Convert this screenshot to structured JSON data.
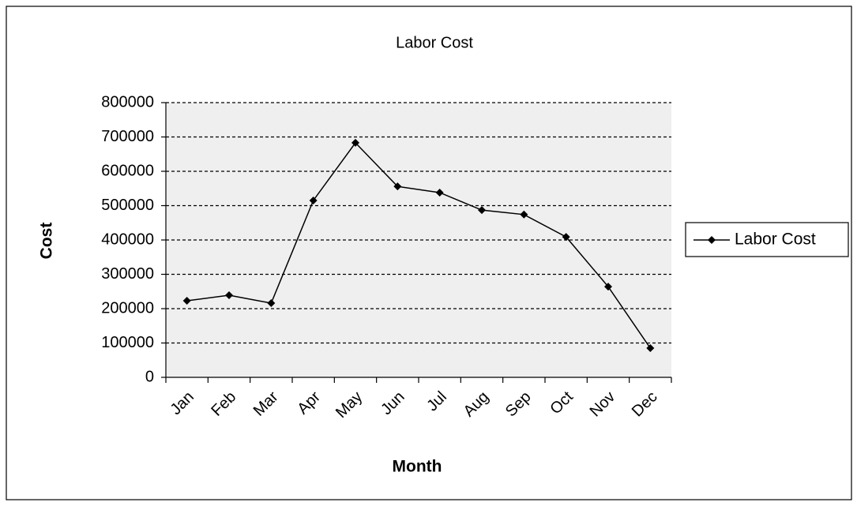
{
  "chart_data": {
    "type": "line",
    "title": "Labor Cost",
    "x_label": "Month",
    "y_label": "Cost",
    "categories": [
      "Jan",
      "Feb",
      "Mar",
      "Apr",
      "May",
      "Jun",
      "Jul",
      "Aug",
      "Sep",
      "Oct",
      "Nov",
      "Dec"
    ],
    "series": [
      {
        "name": "Labor Cost",
        "color": "#000000",
        "values": [
          223000,
          239000,
          216000,
          515000,
          683000,
          556000,
          538000,
          487000,
          474000,
          409000,
          264000,
          85000
        ]
      }
    ],
    "ylim": [
      0,
      800000
    ],
    "yticks": [
      0,
      100000,
      200000,
      300000,
      400000,
      500000,
      600000,
      700000,
      800000
    ],
    "grid": true,
    "legend": "right"
  }
}
